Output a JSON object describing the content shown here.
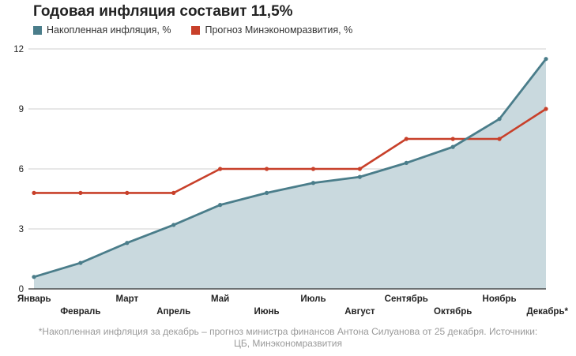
{
  "title": "Годовая инфляция составит 11,5%",
  "legend": [
    {
      "label": "Накопленная инфляция, %",
      "color": "#4a7d8a"
    },
    {
      "label": "Прогноз Минэкономразвития, %",
      "color": "#c8402a"
    }
  ],
  "chart_data": {
    "type": "area",
    "title": "Годовая инфляция составит 11,5%",
    "xlabel": "",
    "ylabel": "",
    "ylim": [
      0,
      12
    ],
    "yticks": [
      0,
      3,
      6,
      9,
      12
    ],
    "grid": true,
    "legend_position": "top-left",
    "categories": [
      "Январь",
      "Февраль",
      "Март",
      "Апрель",
      "Май",
      "Июнь",
      "Июль",
      "Август",
      "Сентябрь",
      "Октябрь",
      "Ноябрь",
      "Декабрь*"
    ],
    "series": [
      {
        "name": "Накопленная инфляция, %",
        "type": "area",
        "color": "#4a7d8a",
        "fill": "#c9d9de",
        "values": [
          0.6,
          1.3,
          2.3,
          3.2,
          4.2,
          4.8,
          5.3,
          5.6,
          6.3,
          7.1,
          8.5,
          11.5
        ]
      },
      {
        "name": "Прогноз Минэкономразвития, %",
        "type": "line",
        "color": "#c8402a",
        "values": [
          4.8,
          4.8,
          4.8,
          4.8,
          6.0,
          6.0,
          6.0,
          6.0,
          7.5,
          7.5,
          7.5,
          9.0
        ]
      }
    ]
  },
  "footnote": {
    "line1": "*Накопленная инфляция за декабрь – прогноз министра финансов Антона Силуанова от 25 декабря. Источники:",
    "line2": "ЦБ, Минэкономразвития"
  }
}
